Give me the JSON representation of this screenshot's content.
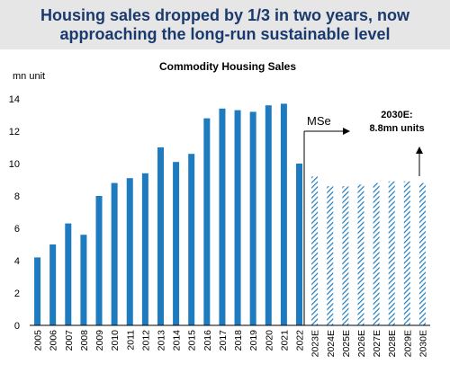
{
  "headline": {
    "line1": "Housing sales dropped by 1/3 in two years, now",
    "line2": "approaching the long-run sustainable level"
  },
  "chart_data": {
    "type": "bar",
    "title": "Commodity Housing Sales",
    "ylabel": "mn unit",
    "xlabel": "",
    "ylim": [
      0,
      14
    ],
    "yticks": [
      0,
      2,
      4,
      6,
      8,
      10,
      12,
      14
    ],
    "grid": false,
    "categories": [
      "2005",
      "2006",
      "2007",
      "2008",
      "2009",
      "2010",
      "2011",
      "2012",
      "2013",
      "2014",
      "2015",
      "2016",
      "2017",
      "2018",
      "2019",
      "2020",
      "2021",
      "2022",
      "2023E",
      "2024E",
      "2025E",
      "2026E",
      "2027E",
      "2028E",
      "2029E",
      "2030E"
    ],
    "values": [
      4.2,
      5.0,
      6.3,
      5.6,
      8.0,
      8.8,
      9.1,
      9.4,
      11.0,
      10.1,
      10.6,
      12.8,
      13.4,
      13.3,
      13.2,
      13.6,
      13.7,
      10.0,
      9.2,
      8.6,
      8.6,
      8.7,
      8.8,
      8.9,
      8.9,
      8.8
    ],
    "forecast_from": "2023E",
    "colors": {
      "actual": "#1f7bbf",
      "forecast_hatch": "#1f7bbf"
    },
    "annotations": {
      "mse": "MSe",
      "target_line1": "2030E:",
      "target_line2": "8.8mn units"
    }
  }
}
